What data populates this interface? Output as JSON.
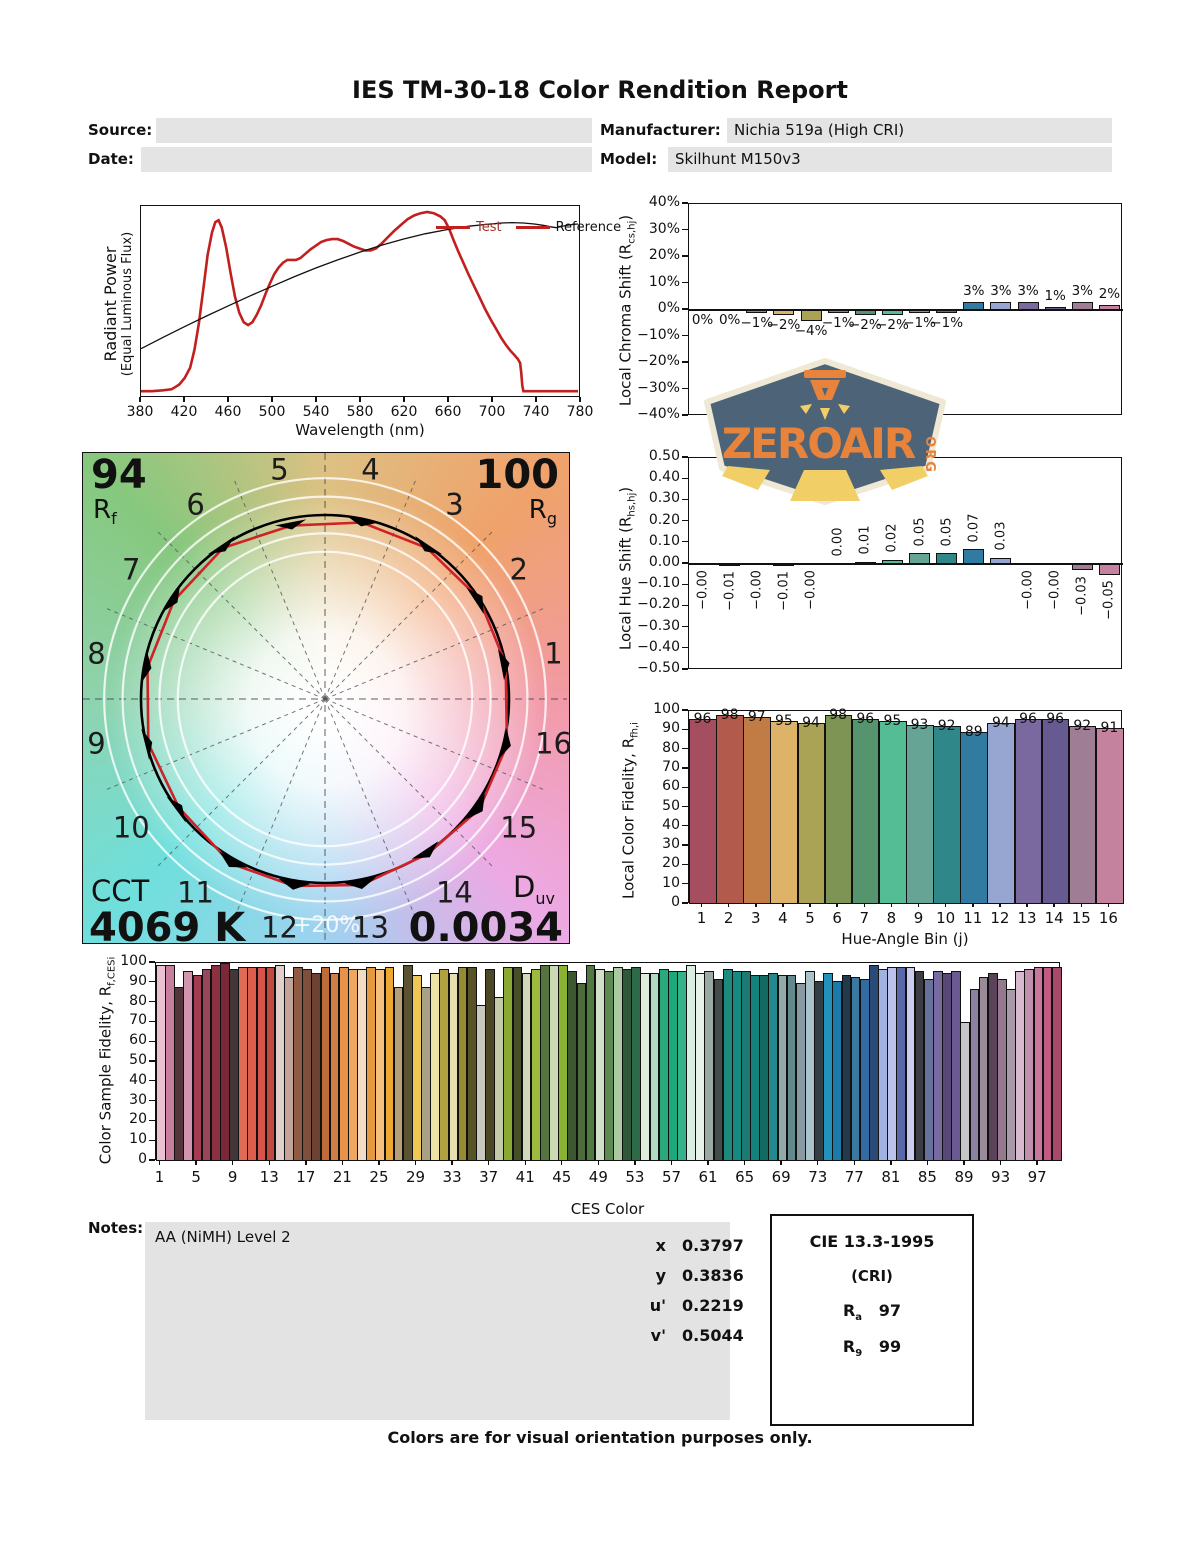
{
  "title": "IES TM-30-18 Color Rendition Report",
  "header": {
    "source_label": "Source:",
    "source_value": "",
    "date_label": "Date:",
    "date_value": "",
    "manufacturer_label": "Manufacturer:",
    "manufacturer_value": "Nichia 519a (High CRI)",
    "model_label": "Model:",
    "model_value": "Skilhunt M150v3"
  },
  "watermark": {
    "text": "ZEROAIR",
    "suffix": "ORG"
  },
  "cvg": {
    "rf_value": "94",
    "rf_main": "R",
    "rf_sub": "f",
    "rg_value": "100",
    "rg_main": "R",
    "rg_sub": "g",
    "cct_label": "CCT",
    "cct_value": "4069 K",
    "duv_main": "D",
    "duv_sub": "uv",
    "duv_value": "0.0034",
    "ring_label": "+20%",
    "bin_numbers": [
      "1",
      "2",
      "3",
      "4",
      "5",
      "6",
      "7",
      "8",
      "9",
      "10",
      "11",
      "12",
      "13",
      "14",
      "15",
      "16"
    ]
  },
  "bin_colors": [
    "#a54e5f",
    "#b25b4d",
    "#c07c44",
    "#dcb369",
    "#aaa356",
    "#7d9454",
    "#55946c",
    "#55bd96",
    "#66a496",
    "#2f8789",
    "#327ba0",
    "#97a6d1",
    "#79699f",
    "#665a90",
    "#9f7d95",
    "#c4829f"
  ],
  "chart_data": [
    {
      "id": "spd",
      "type": "line",
      "xlabel": "Wavelength (nm)",
      "ylabel": "Radiant Power",
      "ylabel2": "(Equal Luminous Flux)",
      "xlim": [
        380,
        780
      ],
      "xticks": [
        "380",
        "420",
        "460",
        "500",
        "540",
        "580",
        "620",
        "660",
        "700",
        "740",
        "780"
      ],
      "legend": [
        {
          "label": "Test",
          "color": "#a93226"
        },
        {
          "label": "Reference",
          "color": "#111111"
        }
      ],
      "series": [
        {
          "name": "Test",
          "color": "#c21f1f",
          "width": 2.6,
          "points": [
            [
              380,
              0.02
            ],
            [
              390,
              0.02
            ],
            [
              400,
              0.025
            ],
            [
              408,
              0.03
            ],
            [
              415,
              0.055
            ],
            [
              420,
              0.09
            ],
            [
              425,
              0.145
            ],
            [
              429,
              0.24
            ],
            [
              433,
              0.38
            ],
            [
              437,
              0.56
            ],
            [
              441,
              0.74
            ],
            [
              445,
              0.86
            ],
            [
              448,
              0.915
            ],
            [
              451,
              0.925
            ],
            [
              454,
              0.885
            ],
            [
              458,
              0.78
            ],
            [
              462,
              0.645
            ],
            [
              466,
              0.52
            ],
            [
              470,
              0.435
            ],
            [
              474,
              0.385
            ],
            [
              478,
              0.37
            ],
            [
              482,
              0.385
            ],
            [
              486,
              0.425
            ],
            [
              490,
              0.475
            ],
            [
              494,
              0.535
            ],
            [
              498,
              0.59
            ],
            [
              502,
              0.64
            ],
            [
              506,
              0.675
            ],
            [
              510,
              0.7
            ],
            [
              514,
              0.715
            ],
            [
              518,
              0.715
            ],
            [
              522,
              0.715
            ],
            [
              526,
              0.725
            ],
            [
              530,
              0.745
            ],
            [
              535,
              0.77
            ],
            [
              540,
              0.79
            ],
            [
              545,
              0.81
            ],
            [
              550,
              0.82
            ],
            [
              555,
              0.825
            ],
            [
              560,
              0.825
            ],
            [
              565,
              0.815
            ],
            [
              570,
              0.8
            ],
            [
              575,
              0.785
            ],
            [
              580,
              0.775
            ],
            [
              585,
              0.765
            ],
            [
              590,
              0.765
            ],
            [
              595,
              0.775
            ],
            [
              600,
              0.8
            ],
            [
              606,
              0.835
            ],
            [
              612,
              0.87
            ],
            [
              618,
              0.9
            ],
            [
              624,
              0.93
            ],
            [
              630,
              0.95
            ],
            [
              636,
              0.962
            ],
            [
              642,
              0.968
            ],
            [
              648,
              0.962
            ],
            [
              654,
              0.945
            ],
            [
              658,
              0.925
            ],
            [
              662,
              0.88
            ],
            [
              666,
              0.82
            ],
            [
              670,
              0.765
            ],
            [
              675,
              0.7
            ],
            [
              680,
              0.635
            ],
            [
              685,
              0.575
            ],
            [
              690,
              0.515
            ],
            [
              695,
              0.455
            ],
            [
              700,
              0.4
            ],
            [
              705,
              0.35
            ],
            [
              710,
              0.3
            ],
            [
              714,
              0.265
            ],
            [
              718,
              0.235
            ],
            [
              722,
              0.21
            ],
            [
              725,
              0.19
            ],
            [
              727,
              0.17
            ],
            [
              728,
              0.12
            ],
            [
              729,
              0.05
            ],
            [
              730,
              0.02
            ],
            [
              735,
              0.02
            ],
            [
              780,
              0.02
            ]
          ]
        },
        {
          "name": "Reference",
          "color": "#111111",
          "width": 1.3,
          "points": [
            [
              380,
              0.245
            ],
            [
              400,
              0.305
            ],
            [
              420,
              0.362
            ],
            [
              440,
              0.418
            ],
            [
              460,
              0.472
            ],
            [
              480,
              0.525
            ],
            [
              500,
              0.575
            ],
            [
              520,
              0.625
            ],
            [
              540,
              0.672
            ],
            [
              560,
              0.715
            ],
            [
              580,
              0.755
            ],
            [
              600,
              0.792
            ],
            [
              620,
              0.825
            ],
            [
              640,
              0.853
            ],
            [
              660,
              0.875
            ],
            [
              680,
              0.893
            ],
            [
              700,
              0.905
            ],
            [
              710,
              0.91
            ],
            [
              720,
              0.912
            ],
            [
              730,
              0.91
            ],
            [
              740,
              0.905
            ],
            [
              748,
              0.898
            ],
            [
              755,
              0.89
            ],
            [
              760,
              0.885
            ],
            [
              765,
              0.892
            ],
            [
              772,
              0.9
            ],
            [
              780,
              0.905
            ]
          ]
        }
      ]
    },
    {
      "id": "chroma_shift",
      "type": "bar",
      "ylabel_pre": "Local Chroma Shift (R",
      "ylabel_sub": "cs,hj",
      "ylabel_post": ")",
      "ylim": [
        -40,
        40
      ],
      "yticks": [
        "40%",
        "30%",
        "20%",
        "10%",
        "0%",
        "−10%",
        "−20%",
        "−30%",
        "−40%"
      ],
      "values": [
        0,
        0,
        -1,
        -2,
        -4,
        -1,
        -2,
        -2,
        -1,
        -1,
        3,
        3,
        3,
        1,
        3,
        2
      ],
      "labels": [
        "0%",
        "0%",
        "−1%",
        "−2%",
        "−4%",
        "−1%",
        "−2%",
        "−2%",
        "−1%",
        "−1%",
        "3%",
        "3%",
        "3%",
        "1%",
        "3%",
        "2%"
      ]
    },
    {
      "id": "hue_shift",
      "type": "bar",
      "ylabel_pre": "Local Hue Shift (R",
      "ylabel_sub": "hs,hj",
      "ylabel_post": ")",
      "ylim": [
        -0.5,
        0.5
      ],
      "yticks": [
        "0.50",
        "0.40",
        "0.30",
        "0.20",
        "0.10",
        "0.00",
        "−0.10",
        "−0.20",
        "−0.30",
        "−0.40",
        "−0.50"
      ],
      "values": [
        -0.004,
        -0.01,
        -0.004,
        -0.01,
        -0.004,
        0.004,
        0.01,
        0.02,
        0.05,
        0.05,
        0.07,
        0.03,
        -0.004,
        -0.004,
        -0.03,
        -0.05
      ],
      "labels": [
        "−0.00",
        "−0.01",
        "−0.00",
        "−0.01",
        "−0.00",
        "0.00",
        "0.01",
        "0.02",
        "0.05",
        "0.05",
        "0.07",
        "0.03",
        "−0.00",
        "−0.00",
        "−0.03",
        "−0.05"
      ]
    },
    {
      "id": "local_fidelity",
      "type": "bar",
      "ylabel_pre": "Local Color Fidelity, R",
      "ylabel_sub": "fh,i",
      "ylabel_post": "",
      "xlabel": "Hue-Angle Bin (j)",
      "ylim": [
        0,
        100
      ],
      "yticks": [
        "100",
        "90",
        "80",
        "70",
        "60",
        "50",
        "40",
        "30",
        "20",
        "10",
        "0"
      ],
      "categories": [
        "1",
        "2",
        "3",
        "4",
        "5",
        "6",
        "7",
        "8",
        "9",
        "10",
        "11",
        "12",
        "13",
        "14",
        "15",
        "16"
      ],
      "values": [
        96,
        98,
        97,
        95,
        94,
        98,
        96,
        95,
        93,
        92,
        89,
        94,
        96,
        96,
        92,
        91
      ]
    },
    {
      "id": "ces_fidelity",
      "type": "bar",
      "ylabel_pre": "Color Sample Fidelity, R",
      "ylabel_sub": "f,CESi",
      "ylabel_post": "",
      "xlabel": "CES Color",
      "ylim": [
        0,
        100
      ],
      "yticks": [
        "100",
        "90",
        "80",
        "70",
        "60",
        "50",
        "40",
        "30",
        "20",
        "10",
        "0"
      ],
      "xticks": [
        "1",
        "5",
        "9",
        "13",
        "17",
        "21",
        "25",
        "29",
        "33",
        "37",
        "41",
        "45",
        "49",
        "53",
        "57",
        "61",
        "65",
        "69",
        "73",
        "77",
        "81",
        "85",
        "89",
        "93",
        "97"
      ],
      "values": [
        99,
        99,
        88,
        96,
        94,
        97,
        99,
        100,
        97,
        98,
        98,
        98,
        98,
        99,
        93,
        98,
        97,
        95,
        98,
        95,
        98,
        97,
        97,
        98,
        97,
        98,
        88,
        99,
        94,
        88,
        95,
        97,
        95,
        98,
        98,
        79,
        97,
        83,
        98,
        98,
        95,
        97,
        99,
        99,
        99,
        96,
        90,
        99,
        97,
        96,
        98,
        97,
        98,
        95,
        95,
        97,
        96,
        96,
        99,
        95,
        96,
        92,
        97,
        96,
        96,
        94,
        94,
        95,
        94,
        94,
        90,
        96,
        91,
        95,
        91,
        94,
        93,
        92,
        99,
        97,
        98,
        98,
        98,
        96,
        92,
        96,
        95,
        96,
        70,
        87,
        93,
        95,
        92,
        87,
        96,
        97,
        98,
        98,
        98
      ],
      "colors": [
        "#e9c1d1",
        "#c77f9d",
        "#54353c",
        "#d295ad",
        "#a43b52",
        "#96485a",
        "#8c3142",
        "#7a2837",
        "#413638",
        "#e06a56",
        "#dd5f4b",
        "#d8544a",
        "#c04940",
        "#e2d0cd",
        "#c3a49a",
        "#8f5b43",
        "#7e4f3c",
        "#6b4233",
        "#bf6a39",
        "#ce7f46",
        "#e89148",
        "#eda75e",
        "#f2ddc4",
        "#e69a40",
        "#f6bf7e",
        "#efa733",
        "#b5a079",
        "#5a5230",
        "#eec853",
        "#a9a184",
        "#eee2a8",
        "#b0a23e",
        "#e7dfb2",
        "#948b33",
        "#585327",
        "#c9c9bf",
        "#4c4825",
        "#c3caa9",
        "#8aa832",
        "#45502a",
        "#d2d9ba",
        "#9cba3b",
        "#567440",
        "#cbdab3",
        "#8bb233",
        "#3d5733",
        "#4c6c3c",
        "#52793f",
        "#d2e2c9",
        "#5c8a52",
        "#abcaa2",
        "#31573b",
        "#2c6a4a",
        "#dcebdc",
        "#b2dac2",
        "#2aaa7c",
        "#1da87c",
        "#35b28c",
        "#daeee2",
        "#e9f2ea",
        "#9aaaa2",
        "#434b4b",
        "#1c8a7c",
        "#148a82",
        "#1c7a72",
        "#12827a",
        "#126a62",
        "#228a8c",
        "#93aaaa",
        "#628a8c",
        "#8a9aa2",
        "#aac2ca",
        "#323e42",
        "#2292ba",
        "#1a7aaa",
        "#223a4a",
        "#3a7aa2",
        "#326aa2",
        "#2a4a78",
        "#a2b2e0",
        "#bcc2ec",
        "#5868aa",
        "#ccccee",
        "#3c3c44",
        "#68719c",
        "#7a6aa2",
        "#584878",
        "#6a5a92",
        "#c5c4c6",
        "#8a82a0",
        "#9a8a9a",
        "#5a4258",
        "#95798f",
        "#a89aa8",
        "#d8bace",
        "#c290ac",
        "#c8789c",
        "#c05c84",
        "#a8486a"
      ]
    }
  ],
  "notes": {
    "label": "Notes:",
    "text": "AA (NiMH) Level 2"
  },
  "chromaticity": {
    "rows": [
      {
        "label": "x",
        "value": "0.3797"
      },
      {
        "label": "y",
        "value": "0.3836"
      },
      {
        "label": "u'",
        "value": "0.2219"
      },
      {
        "label": "v'",
        "value": "0.5044"
      }
    ]
  },
  "cri": {
    "title": "CIE 13.3-1995",
    "subtitle": "(CRI)",
    "ra_main": "R",
    "ra_sub": "a",
    "ra_value": "97",
    "r9_main": "R",
    "r9_sub": "9",
    "r9_value": "99"
  },
  "footer": "Colors are for visual orientation purposes only.",
  "colors": {
    "accent_red": "#c21f1f",
    "field_gray": "#e4e4e4",
    "badge_slate": "#4d6378",
    "badge_orange": "#e8833c",
    "badge_yellow": "#f2cf66",
    "badge_cream": "#eee8d4"
  }
}
